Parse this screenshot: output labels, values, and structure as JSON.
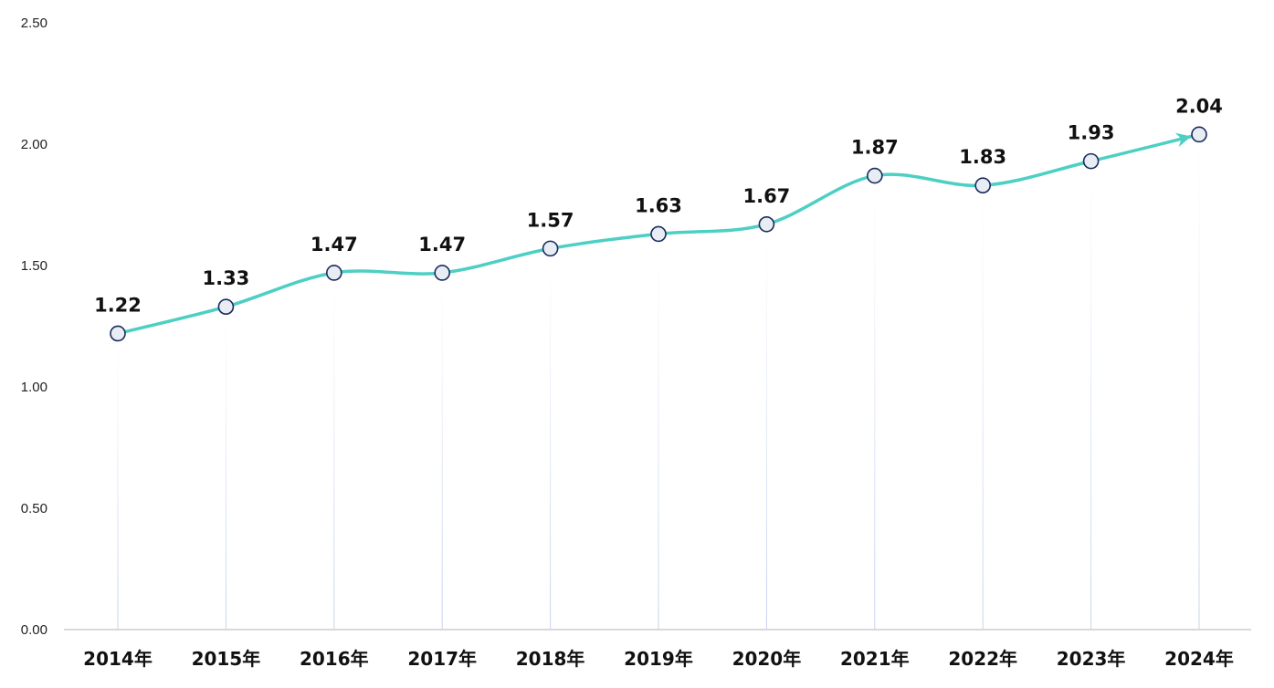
{
  "chart_data": {
    "type": "line",
    "categories": [
      "2014年",
      "2015年",
      "2016年",
      "2017年",
      "2018年",
      "2019年",
      "2020年",
      "2021年",
      "2022年",
      "2023年",
      "2024年"
    ],
    "series": [
      {
        "values": [
          1.22,
          1.33,
          1.47,
          1.47,
          1.57,
          1.63,
          1.67,
          1.87,
          1.83,
          1.93,
          2.04
        ]
      }
    ],
    "data_labels": [
      "1.22",
      "1.33",
      "1.47",
      "1.47",
      "1.57",
      "1.63",
      "1.67",
      "1.87",
      "1.83",
      "1.93",
      "2.04"
    ],
    "yticks": [
      "0.00",
      "0.50",
      "1.00",
      "1.50",
      "2.00",
      "2.50"
    ],
    "ylim": [
      0,
      2.5
    ],
    "grid": false,
    "smooth": true,
    "end_arrow": true,
    "colors": {
      "line": "#4ecfc4",
      "marker_fill": "#e8edf3",
      "marker_stroke": "#1a2a5e",
      "axis": "#d9d9d9",
      "drop_line": "#c5d3ee"
    }
  }
}
